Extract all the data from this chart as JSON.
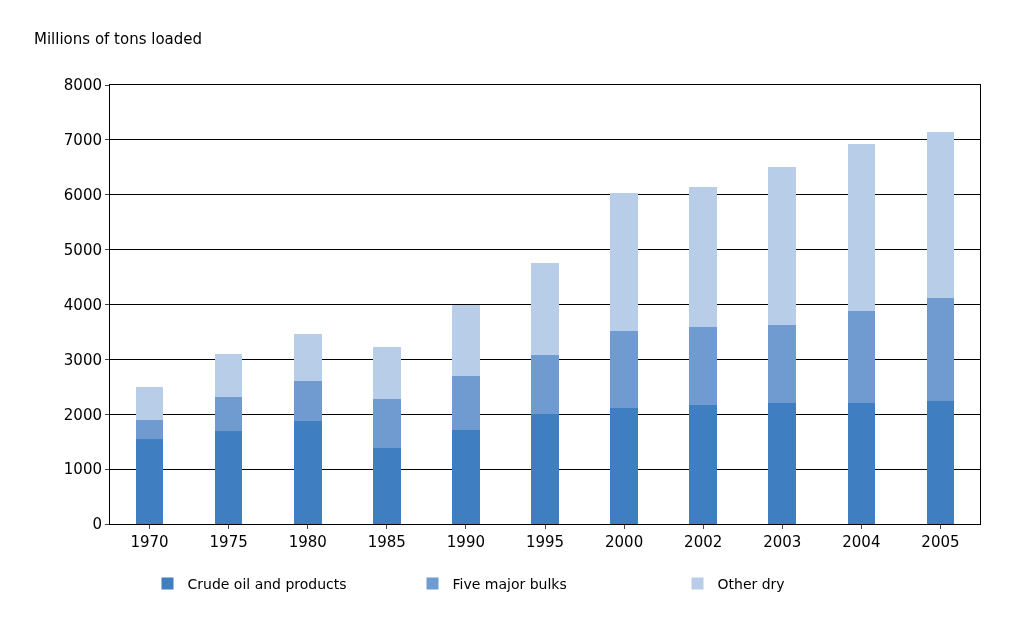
{
  "chart_data": {
    "type": "bar",
    "stacked": true,
    "ylabel": "Millions of tons loaded",
    "categories": [
      "1970",
      "1975",
      "1980",
      "1985",
      "1990",
      "1995",
      "2000",
      "2002",
      "2003",
      "2004",
      "2005"
    ],
    "series": [
      {
        "name": "Crude oil and products",
        "color": "#3f7fc1",
        "values": [
          1540,
          1690,
          1870,
          1380,
          1720,
          2010,
          2120,
          2160,
          2200,
          2200,
          2250
        ]
      },
      {
        "name": "Five major bulks",
        "color": "#6f9bd1",
        "values": [
          350,
          620,
          730,
          900,
          980,
          1070,
          1400,
          1430,
          1430,
          1690,
          1870
        ]
      },
      {
        "name": "Other dry",
        "color": "#b8cde8",
        "values": [
          610,
          780,
          870,
          950,
          1300,
          1670,
          2510,
          2550,
          2880,
          3030,
          3030
        ]
      }
    ],
    "ylim": [
      0,
      8000
    ],
    "yticks": [
      0,
      1000,
      2000,
      3000,
      4000,
      5000,
      6000,
      7000,
      8000
    ],
    "grid": "y",
    "legend": "bottom"
  }
}
